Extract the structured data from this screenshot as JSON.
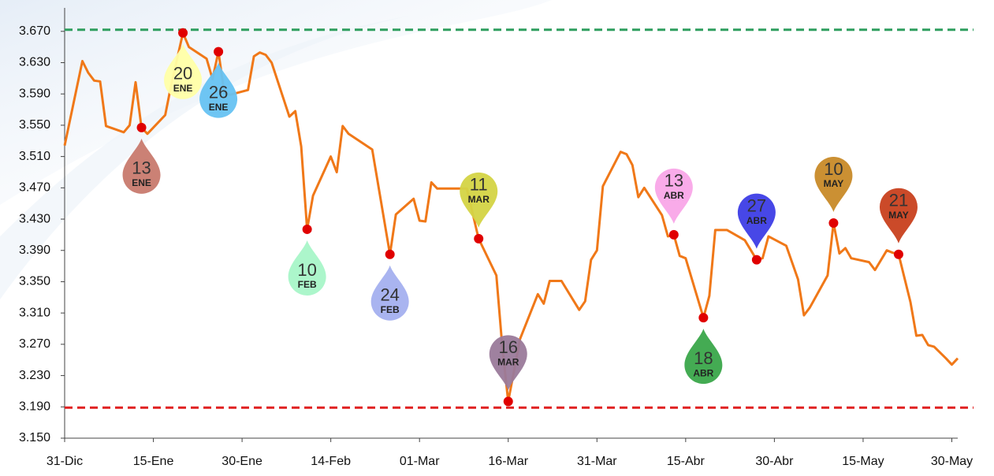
{
  "chart_data": {
    "type": "line",
    "color": "#f07818",
    "x": [
      "31-Dic",
      "03-Ene",
      "04-Ene",
      "05-Ene",
      "06-Ene",
      "07-Ene",
      "10-Ene",
      "11-Ene",
      "12-Ene",
      "13-Ene",
      "14-Ene",
      "17-Ene",
      "18-Ene",
      "20-Ene",
      "21-Ene",
      "24-Ene",
      "25-Ene",
      "26-Ene",
      "27-Ene",
      "28-Ene",
      "31-Ene",
      "01-Feb",
      "02-Feb",
      "03-Feb",
      "04-Feb",
      "07-Feb",
      "08-Feb",
      "09-Feb",
      "10-Feb",
      "11-Feb",
      "14-Feb",
      "15-Feb",
      "16-Feb",
      "17-Feb",
      "21-Feb",
      "24-Feb",
      "25-Feb",
      "28-Feb",
      "01-Mar",
      "02-Mar",
      "03-Mar",
      "04-Mar",
      "07-Mar",
      "09-Mar",
      "11-Mar",
      "14-Mar",
      "15-Mar",
      "16-Mar",
      "17-Mar",
      "18-Mar",
      "21-Mar",
      "22-Mar",
      "23-Mar",
      "25-Mar",
      "28-Mar",
      "29-Mar",
      "30-Mar",
      "31-Mar",
      "01-Abr",
      "04-Abr",
      "05-Abr",
      "06-Abr",
      "07-Abr",
      "08-Abr",
      "11-Abr",
      "12-Abr",
      "13-Abr",
      "14-Abr",
      "15-Abr",
      "18-Abr",
      "19-Abr",
      "20-Abr",
      "22-Abr",
      "25-Abr",
      "27-Abr",
      "28-Abr",
      "29-Abr",
      "02-May",
      "04-May",
      "05-May",
      "06-May",
      "09-May",
      "10-May",
      "11-May",
      "12-May",
      "13-May",
      "16-May",
      "17-May",
      "19-May",
      "20-May",
      "21-May",
      "23-May",
      "24-May",
      "25-May",
      "26-May",
      "27-May",
      "29-May",
      "30-May",
      "31-May"
    ],
    "values": [
      3.524,
      3.632,
      3.617,
      3.607,
      3.606,
      3.549,
      3.541,
      3.55,
      3.605,
      3.547,
      3.539,
      3.563,
      3.601,
      3.668,
      3.65,
      3.635,
      3.609,
      3.644,
      3.591,
      3.589,
      3.595,
      3.638,
      3.643,
      3.64,
      3.63,
      3.561,
      3.568,
      3.523,
      3.417,
      3.46,
      3.51,
      3.49,
      3.549,
      3.539,
      3.519,
      3.385,
      3.436,
      3.456,
      3.428,
      3.427,
      3.477,
      3.469,
      3.469,
      3.469,
      3.405,
      3.358,
      3.267,
      3.197,
      3.237,
      3.277,
      3.334,
      3.322,
      3.351,
      3.351,
      3.314,
      3.325,
      3.378,
      3.39,
      3.472,
      3.516,
      3.513,
      3.499,
      3.458,
      3.47,
      3.435,
      3.408,
      3.41,
      3.383,
      3.38,
      3.304,
      3.332,
      3.416,
      3.416,
      3.403,
      3.378,
      3.38,
      3.408,
      3.396,
      3.353,
      3.307,
      3.317,
      3.358,
      3.425,
      3.386,
      3.393,
      3.38,
      3.375,
      3.365,
      3.39,
      3.387,
      3.385,
      3.324,
      3.281,
      3.282,
      3.269,
      3.267,
      3.252,
      3.244,
      3.252
    ],
    "xlim": [
      "31-Dic",
      "31-May"
    ],
    "xticks": [
      "31-Dic",
      "15-Ene",
      "30-Ene",
      "14-Feb",
      "01-Mar",
      "16-Mar",
      "31-Mar",
      "15-Abr",
      "30-Abr",
      "15-May",
      "30-May"
    ],
    "ylim": [
      3.15,
      3.7
    ],
    "yticks": [
      {
        "value": 3.15,
        "label": "3.150"
      },
      {
        "value": 3.19,
        "label": "3.190"
      },
      {
        "value": 3.23,
        "label": "3.230"
      },
      {
        "value": 3.27,
        "label": "3.270"
      },
      {
        "value": 3.31,
        "label": "3.310"
      },
      {
        "value": 3.35,
        "label": "3.350"
      },
      {
        "value": 3.39,
        "label": "3.390"
      },
      {
        "value": 3.43,
        "label": "3.430"
      },
      {
        "value": 3.47,
        "label": "3.470"
      },
      {
        "value": 3.51,
        "label": "3.510"
      },
      {
        "value": 3.55,
        "label": "3.550"
      },
      {
        "value": 3.59,
        "label": "3.590"
      },
      {
        "value": 3.63,
        "label": "3.630"
      },
      {
        "value": 3.67,
        "label": "3.670"
      }
    ],
    "reference_lines": [
      {
        "value": 3.672,
        "color": "#2e9e5e"
      },
      {
        "value": 3.189,
        "color": "#e02020"
      }
    ],
    "annotations": [
      {
        "x": "13-Ene",
        "value": 3.547,
        "day": "13",
        "month": "ENE",
        "color": "#c87a6e",
        "position": "below"
      },
      {
        "x": "20-Ene",
        "value": 3.668,
        "day": "20",
        "month": "ENE",
        "color": "#ffffa8",
        "position": "below"
      },
      {
        "x": "26-Ene",
        "value": 3.644,
        "day": "26",
        "month": "ENE",
        "color": "#66c2f2",
        "position": "below"
      },
      {
        "x": "10-Feb",
        "value": 3.417,
        "day": "10",
        "month": "FEB",
        "color": "#a8f5c8",
        "position": "below"
      },
      {
        "x": "24-Feb",
        "value": 3.385,
        "day": "24",
        "month": "FEB",
        "color": "#a4b0ef",
        "position": "below"
      },
      {
        "x": "11-Mar",
        "value": 3.405,
        "day": "11",
        "month": "MAR",
        "color": "#d4d444",
        "position": "above"
      },
      {
        "x": "16-Mar",
        "value": 3.197,
        "day": "16",
        "month": "MAR",
        "color": "#9a7a9a",
        "position": "above"
      },
      {
        "x": "13-Abr",
        "value": 3.41,
        "day": "13",
        "month": "ABR",
        "color": "#f9a6e8",
        "position": "above"
      },
      {
        "x": "18-Abr",
        "value": 3.304,
        "day": "18",
        "month": "ABR",
        "color": "#3aa64a",
        "position": "below"
      },
      {
        "x": "27-Abr",
        "value": 3.378,
        "day": "27",
        "month": "ABR",
        "color": "#3d3de6",
        "position": "above"
      },
      {
        "x": "10-May",
        "value": 3.425,
        "day": "10",
        "month": "MAY",
        "color": "#c88a28",
        "position": "above"
      },
      {
        "x": "21-May",
        "value": 3.385,
        "day": "21",
        "month": "MAY",
        "color": "#c8401e",
        "position": "above"
      }
    ],
    "marker_color": "#e00000"
  }
}
